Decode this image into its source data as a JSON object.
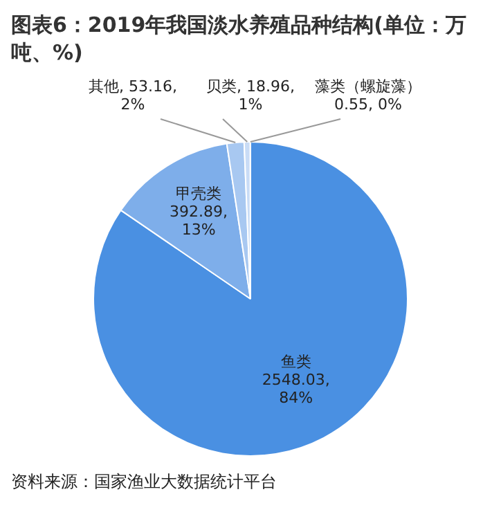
{
  "chart_data": {
    "type": "pie",
    "title": "图表6：2019年我国淡水养殖品种结构(单位：万吨、%)",
    "categories": [
      "鱼类",
      "甲壳类",
      "其他",
      "贝类",
      "藻类（螺旋藻）"
    ],
    "values": [
      2548.03,
      392.89,
      53.16,
      18.96,
      0.55
    ],
    "colors": [
      "#4a90e2",
      "#7eaeea",
      "#a8c8f1",
      "#c9dcf6",
      "#e6eefb"
    ],
    "value_labels": [
      "2548.03, 84%",
      "392.89, 13%",
      "53.16, 2%",
      "18.96, 1%",
      "0.55, 0%"
    ],
    "legend": false,
    "annotations": [
      "资料来源：国家渔业大数据统计平台"
    ]
  }
}
